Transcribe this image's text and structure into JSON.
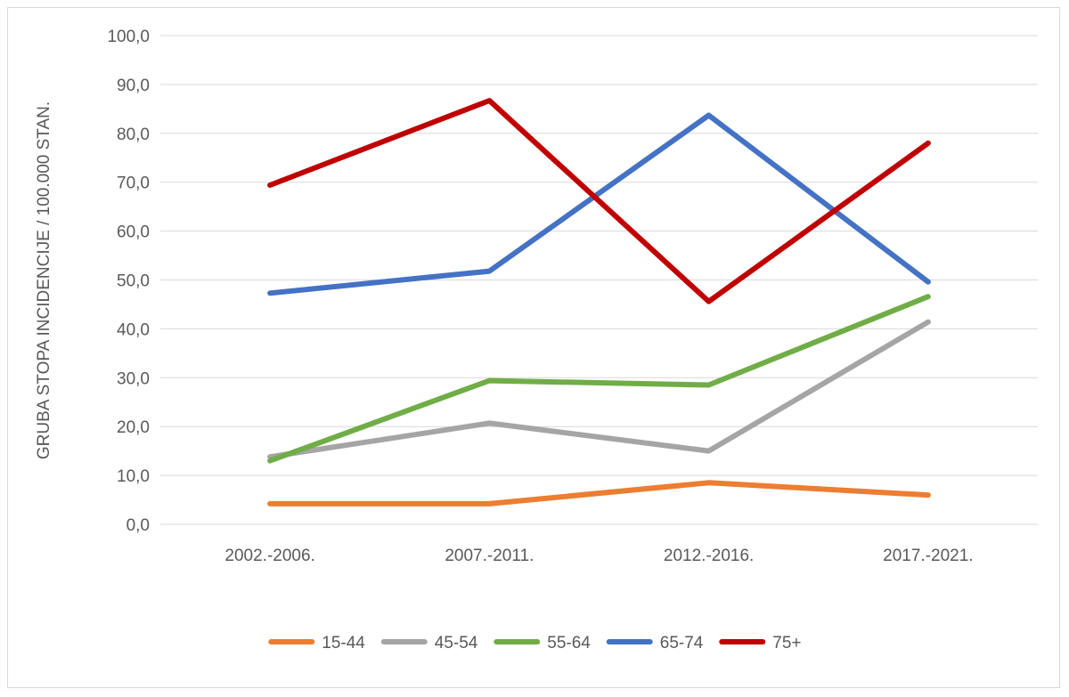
{
  "chart_data": {
    "type": "line",
    "title": "",
    "xlabel": "",
    "ylabel": "GRUBA STOPA INCIDENCIJE / 100.000 STAN.",
    "categories": [
      "2002.-2006.",
      "2007.-2011.",
      "2012.-2016.",
      "2017.-2021."
    ],
    "ylim": [
      0,
      100
    ],
    "yticks": [
      "0,0",
      "10,0",
      "20,0",
      "30,0",
      "40,0",
      "50,0",
      "60,0",
      "70,0",
      "80,0",
      "90,0",
      "100,0"
    ],
    "grid": "horizontal",
    "legend_position": "bottom",
    "series": [
      {
        "name": "15-44",
        "color": "#ed7d31",
        "values": [
          4.2,
          4.2,
          8.5,
          6.0
        ]
      },
      {
        "name": "45-54",
        "color": "#a5a5a5",
        "values": [
          13.8,
          20.7,
          15.0,
          41.4
        ]
      },
      {
        "name": "55-64",
        "color": "#70ad47",
        "values": [
          13.0,
          29.4,
          28.5,
          46.6
        ]
      },
      {
        "name": "65-74",
        "color": "#4472c4",
        "values": [
          47.3,
          51.8,
          83.7,
          49.6
        ]
      },
      {
        "name": "75+",
        "color": "#c00000",
        "values": [
          69.4,
          86.7,
          45.6,
          78.0
        ]
      }
    ]
  }
}
